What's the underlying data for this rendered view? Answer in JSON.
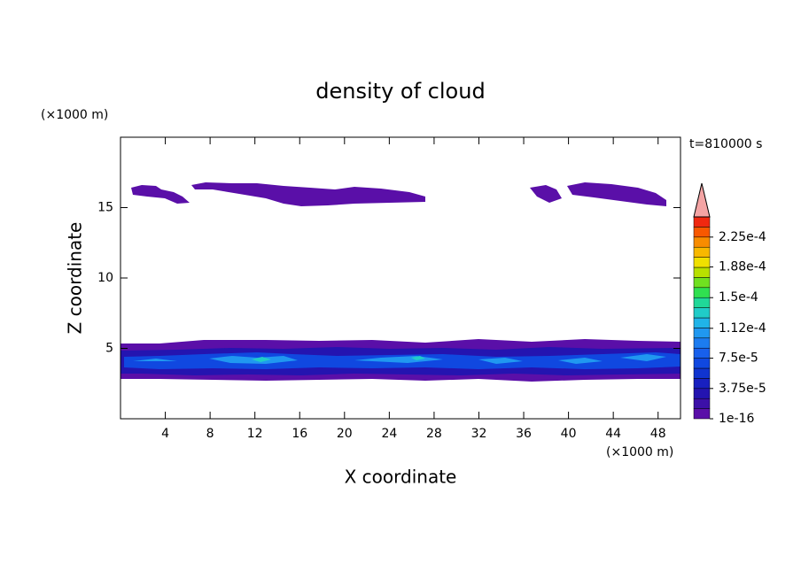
{
  "chart_data": {
    "type": "contour",
    "title": "density of cloud",
    "x_label": "X coordinate",
    "y_label": "Z coordinate",
    "x_unit": "(×1000 m)",
    "y_unit": "(×1000 m)",
    "annotation": "t=810000 s",
    "xlim": [
      0,
      50
    ],
    "xticks": [
      4,
      8,
      12,
      16,
      20,
      24,
      28,
      32,
      36,
      40,
      44,
      48
    ],
    "ylim": [
      0,
      20
    ],
    "yticks": [
      5,
      10,
      15
    ],
    "colorbar": {
      "clim": [
        1e-16,
        0.00025
      ],
      "ticks": [
        {
          "value": 1e-16,
          "label": "1e-16"
        },
        {
          "value": 3.75e-05,
          "label": "3.75e-5"
        },
        {
          "value": 7.5e-05,
          "label": "7.5e-5"
        },
        {
          "value": 0.000112,
          "label": "1.12e-4"
        },
        {
          "value": 0.00015,
          "label": "1.5e-4"
        },
        {
          "value": 0.000188,
          "label": "1.88e-4"
        },
        {
          "value": 0.000225,
          "label": "2.25e-4"
        }
      ],
      "colors": [
        "#5a0fa8",
        "#3c10a8",
        "#2414b0",
        "#1820c0",
        "#1034d0",
        "#1048e0",
        "#1860ec",
        "#1c7cf0",
        "#2098f0",
        "#20b4e8",
        "#20ccc8",
        "#20d898",
        "#30e050",
        "#70e020",
        "#b8e000",
        "#f0e000",
        "#f8b800",
        "#f88c00",
        "#f85800",
        "#f02810"
      ],
      "extend_color": "#f4a4a4"
    }
  }
}
